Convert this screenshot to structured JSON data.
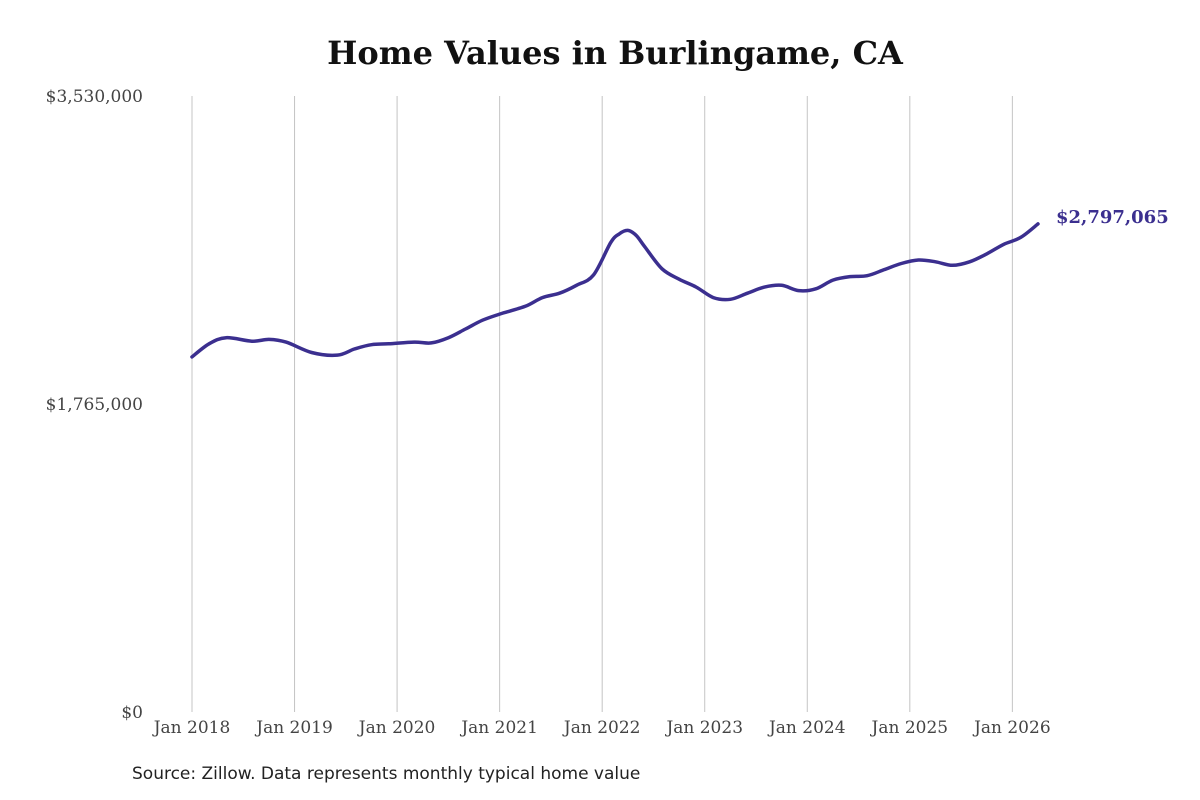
{
  "chart_data": {
    "type": "line",
    "title": "Home Values in Burlingame, CA",
    "xlabel": "",
    "ylabel": "",
    "ylim": [
      0,
      3530000
    ],
    "xlim": [
      "2018-01",
      "2026-04"
    ],
    "y_ticks": [
      {
        "value": 0,
        "label": "$0"
      },
      {
        "value": 1765000,
        "label": "$1,765,000"
      },
      {
        "value": 3530000,
        "label": "$3,530,000"
      }
    ],
    "x_ticks": [
      {
        "value": "2018-01",
        "label": "Jan 2018"
      },
      {
        "value": "2019-01",
        "label": "Jan 2019"
      },
      {
        "value": "2020-01",
        "label": "Jan 2020"
      },
      {
        "value": "2021-01",
        "label": "Jan 2021"
      },
      {
        "value": "2022-01",
        "label": "Jan 2022"
      },
      {
        "value": "2023-01",
        "label": "Jan 2023"
      },
      {
        "value": "2024-01",
        "label": "Jan 2024"
      },
      {
        "value": "2025-01",
        "label": "Jan 2025"
      },
      {
        "value": "2026-01",
        "label": "Jan 2026"
      }
    ],
    "grid": "vertical",
    "line_color": "#3b2f8f",
    "series": [
      {
        "x": [
          "2018-01",
          "2018-03",
          "2018-05",
          "2018-08",
          "2018-10",
          "2018-12",
          "2019-03",
          "2019-06",
          "2019-08",
          "2019-10",
          "2019-12",
          "2020-03",
          "2020-05",
          "2020-07",
          "2020-09",
          "2020-11",
          "2021-01",
          "2021-04",
          "2021-06",
          "2021-08",
          "2021-10",
          "2021-12",
          "2022-02",
          "2022-03",
          "2022-04",
          "2022-05",
          "2022-06",
          "2022-08",
          "2022-10",
          "2022-12",
          "2023-02",
          "2023-04",
          "2023-06",
          "2023-08",
          "2023-10",
          "2023-12",
          "2024-02",
          "2024-04",
          "2024-06",
          "2024-08",
          "2024-10",
          "2024-12",
          "2025-02",
          "2025-04",
          "2025-06",
          "2025-08",
          "2025-10",
          "2025-12",
          "2026-02",
          "2026-04"
        ],
        "values": [
          2035000,
          2110000,
          2145000,
          2125000,
          2135000,
          2120000,
          2060000,
          2045000,
          2080000,
          2105000,
          2110000,
          2120000,
          2115000,
          2145000,
          2195000,
          2245000,
          2280000,
          2325000,
          2375000,
          2400000,
          2445000,
          2505000,
          2690000,
          2740000,
          2760000,
          2730000,
          2665000,
          2540000,
          2480000,
          2435000,
          2375000,
          2365000,
          2400000,
          2435000,
          2445000,
          2415000,
          2425000,
          2475000,
          2495000,
          2500000,
          2535000,
          2570000,
          2590000,
          2580000,
          2560000,
          2580000,
          2625000,
          2680000,
          2720000,
          2797065
        ]
      }
    ],
    "end_label": "$2,797,065",
    "source": "Source: Zillow. Data represents monthly typical home value"
  }
}
